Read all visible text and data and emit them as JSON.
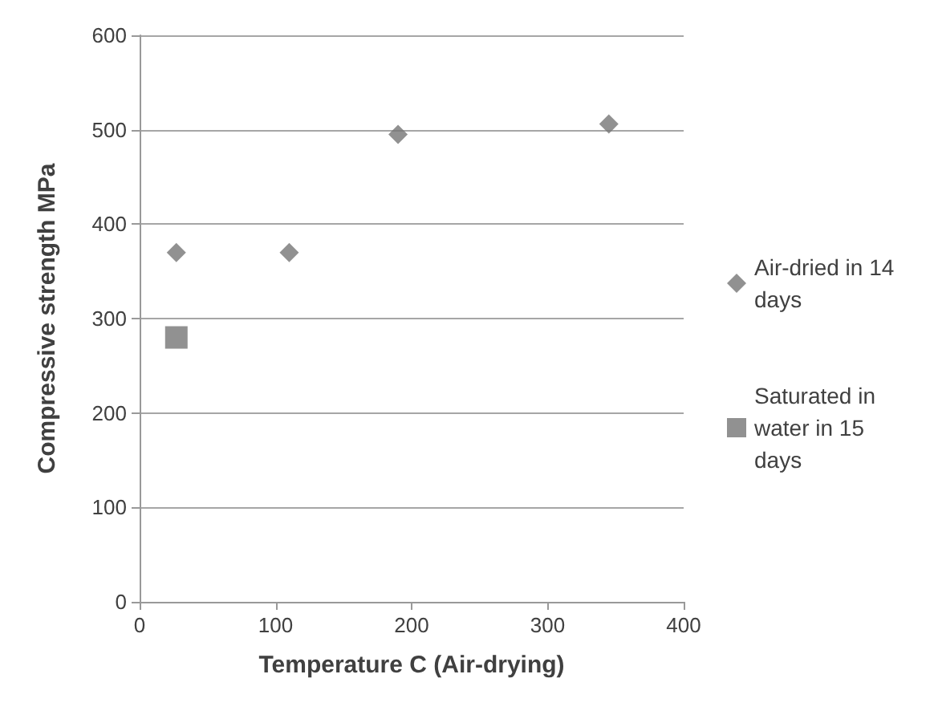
{
  "chart_data": {
    "type": "scatter",
    "xlabel": "Temperature C (Air-drying)",
    "ylabel": "Compressive strength MPa",
    "xlim": [
      0,
      400
    ],
    "xticks": [
      0,
      100,
      200,
      300,
      400
    ],
    "ylim": [
      0,
      600
    ],
    "yticks": [
      0,
      100,
      200,
      300,
      400,
      500,
      600
    ],
    "grid": "y",
    "legend": "right",
    "series": [
      {
        "name": "Air-dried in 14 days",
        "color": "#767676",
        "marker": "diamond",
        "x": [
          27,
          110,
          190,
          345
        ],
        "values": [
          370,
          370,
          495,
          506
        ]
      },
      {
        "name": "Saturated in water in 15 days",
        "color": "#767676",
        "marker": "square",
        "x": [
          27
        ],
        "values": [
          280
        ]
      }
    ]
  }
}
